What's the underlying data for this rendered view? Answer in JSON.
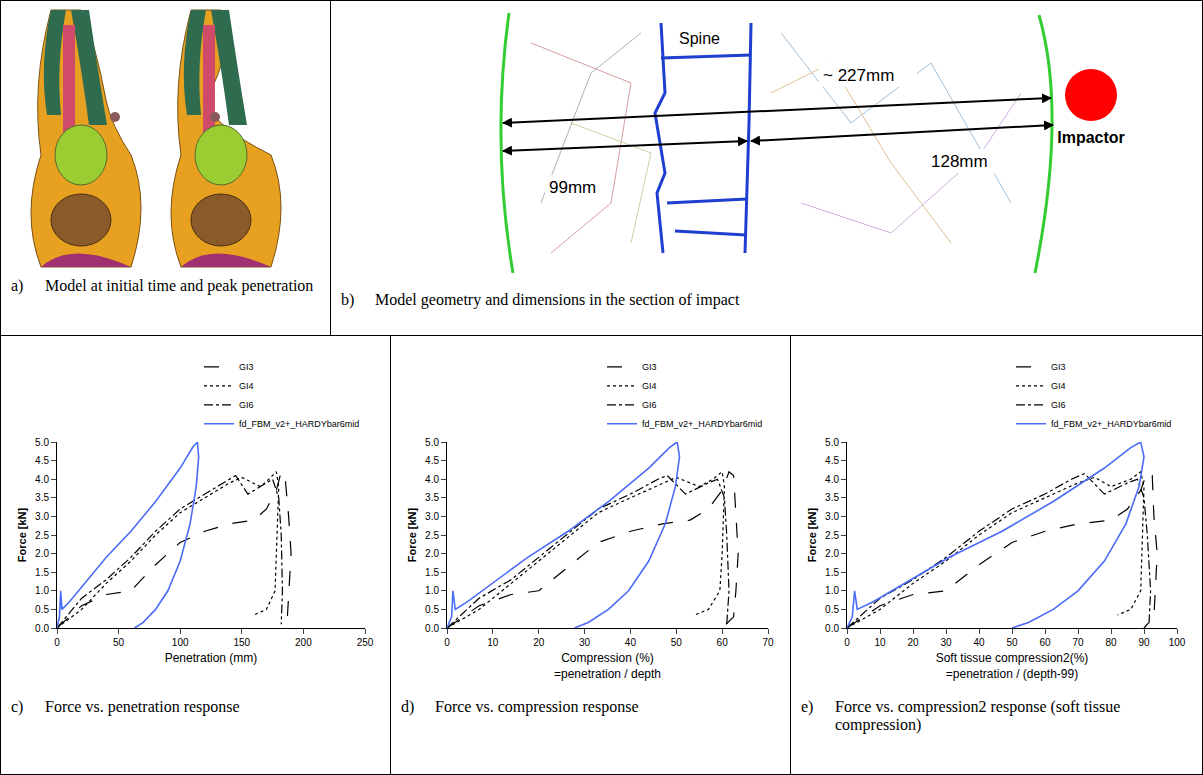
{
  "panels": {
    "a": {
      "label": "a)",
      "caption": "Model at initial time and peak penetration"
    },
    "b": {
      "label": "b)",
      "caption": "Model geometry and dimensions in the section of impact",
      "labels": {
        "spine": "Spine",
        "total": "~ 227mm",
        "back": "99mm",
        "front": "128mm",
        "impactor": "Impactor"
      }
    }
  },
  "chart_data": [
    {
      "type": "line",
      "label": "c)",
      "title": "Force vs. penetration response",
      "x_label": "Penetration (mm)",
      "y_label": "Force [kN]",
      "xlim": [
        0,
        250
      ],
      "xticks": [
        0,
        50,
        100,
        150,
        200,
        250
      ],
      "ylim": [
        0,
        5
      ],
      "yticks": [
        {
          "value": 0,
          "label": "0.0"
        },
        {
          "value": 0.5,
          "label": "0.5"
        },
        {
          "value": 1,
          "label": "1.0"
        },
        {
          "value": 1.5,
          "label": "1.5"
        },
        {
          "value": 2,
          "label": "2.0"
        },
        {
          "value": 2.5,
          "label": "2.5"
        },
        {
          "value": 3,
          "label": "3.0"
        },
        {
          "value": 3.5,
          "label": "3.5"
        },
        {
          "value": 4,
          "label": "4.0"
        },
        {
          "value": 4.5,
          "label": "4.5"
        },
        {
          "value": 5,
          "label": "5.0"
        }
      ],
      "grid": false,
      "legend": "top right",
      "series": [
        {
          "name": "GI3",
          "color": "#000000",
          "line_style": "longdash",
          "x": [
            0,
            20,
            40,
            60,
            80,
            100,
            120,
            140,
            160,
            170,
            178,
            182,
            185,
            188,
            190,
            188,
            187,
            180
          ],
          "values": [
            0,
            0.6,
            0.9,
            1.0,
            1.7,
            2.3,
            2.6,
            2.8,
            2.9,
            3.2,
            3.7,
            4.2,
            4.1,
            3.0,
            2.0,
            1.0,
            0.3,
            0
          ]
        },
        {
          "name": "GI4",
          "color": "#000000",
          "line_style": "dotted",
          "x": [
            0,
            20,
            40,
            60,
            80,
            100,
            120,
            140,
            150,
            165,
            172,
            178,
            180,
            178,
            177,
            170,
            160
          ],
          "values": [
            0,
            0.5,
            1.2,
            1.8,
            2.5,
            3.1,
            3.5,
            3.9,
            4.05,
            3.8,
            4.0,
            4.2,
            3.8,
            2.0,
            1.0,
            0.5,
            0.35
          ]
        },
        {
          "name": "GI6",
          "color": "#000000",
          "line_style": "dashdot",
          "x": [
            0,
            20,
            40,
            60,
            80,
            100,
            120,
            140,
            145,
            155,
            170,
            175,
            180,
            182,
            183,
            182
          ],
          "values": [
            0,
            0.8,
            1.3,
            1.9,
            2.6,
            3.2,
            3.6,
            4.0,
            4.1,
            3.6,
            3.9,
            4.0,
            3.5,
            2.5,
            1.0,
            0.1
          ]
        },
        {
          "name": "fd_FBM_v2+_HARDYbar6mid",
          "color": "#4a6cf7",
          "line_style": "solid",
          "x": [
            0,
            2,
            3,
            4,
            10,
            20,
            40,
            60,
            80,
            100,
            110,
            114,
            115,
            113,
            108,
            100,
            90,
            80,
            70,
            63
          ],
          "values": [
            0,
            0.3,
            1.0,
            0.5,
            0.7,
            1.1,
            1.9,
            2.6,
            3.4,
            4.3,
            4.85,
            5.0,
            4.6,
            3.8,
            2.8,
            1.8,
            1.0,
            0.5,
            0.15,
            0
          ]
        }
      ]
    },
    {
      "type": "line",
      "label": "d)",
      "title": "Force vs. compression response",
      "x_label": "Compression (%)\n=penetration / depth",
      "y_label": "Force [kN]",
      "xlim": [
        0,
        70
      ],
      "xticks": [
        0,
        10,
        20,
        30,
        40,
        50,
        60,
        70
      ],
      "ylim": [
        0,
        5
      ],
      "yticks": [
        {
          "value": 0,
          "label": "0.0"
        },
        {
          "value": 0.5,
          "label": "0.5"
        },
        {
          "value": 1,
          "label": "1.0"
        },
        {
          "value": 1.5,
          "label": "1.5"
        },
        {
          "value": 2,
          "label": "2.0"
        },
        {
          "value": 2.5,
          "label": "2.5"
        },
        {
          "value": 3,
          "label": "3.0"
        },
        {
          "value": 3.5,
          "label": "3.5"
        },
        {
          "value": 4,
          "label": "4.0"
        },
        {
          "value": 4.5,
          "label": "4.5"
        },
        {
          "value": 5,
          "label": "5.0"
        }
      ],
      "grid": false,
      "legend": "top right",
      "series": [
        {
          "name": "GI3",
          "color": "#000000",
          "line_style": "longdash",
          "x": [
            0,
            7,
            14,
            20,
            27,
            33,
            40,
            47,
            53,
            57,
            60,
            61.5,
            62.5,
            63,
            63.5,
            63,
            62.5,
            60
          ],
          "values": [
            0,
            0.6,
            0.9,
            1.0,
            1.7,
            2.3,
            2.6,
            2.8,
            2.9,
            3.2,
            3.7,
            4.2,
            4.1,
            3.0,
            2.0,
            1.0,
            0.3,
            0
          ]
        },
        {
          "name": "GI4",
          "color": "#000000",
          "line_style": "dotted",
          "x": [
            0,
            7,
            14,
            20,
            27,
            33,
            40,
            47,
            50,
            55,
            58,
            60,
            60.5,
            60,
            59.5,
            57,
            54
          ],
          "values": [
            0,
            0.5,
            1.2,
            1.8,
            2.5,
            3.1,
            3.5,
            3.9,
            4.05,
            3.8,
            4.0,
            4.2,
            3.8,
            2.0,
            1.0,
            0.5,
            0.35
          ]
        },
        {
          "name": "GI6",
          "color": "#000000",
          "line_style": "dashdot",
          "x": [
            0,
            7,
            14,
            20,
            27,
            33,
            40,
            46,
            48,
            52,
            57,
            59,
            60.5,
            61,
            61.5,
            61
          ],
          "values": [
            0,
            0.8,
            1.3,
            1.9,
            2.6,
            3.2,
            3.6,
            4.0,
            4.1,
            3.6,
            3.9,
            4.0,
            3.5,
            2.5,
            1.0,
            0.1
          ]
        },
        {
          "name": "fd_FBM_v2+_HARDYbar6mid",
          "color": "#4a6cf7",
          "line_style": "solid",
          "x": [
            0,
            1,
            1.3,
            1.8,
            4.4,
            8.8,
            17.6,
            26.4,
            35.2,
            44,
            48.5,
            50.2,
            50.7,
            49.8,
            47.6,
            44,
            39.6,
            35.2,
            30.8,
            27.8
          ],
          "values": [
            0,
            0.3,
            1.0,
            0.5,
            0.7,
            1.1,
            1.9,
            2.6,
            3.4,
            4.3,
            4.85,
            5.0,
            4.6,
            3.8,
            2.8,
            1.8,
            1.0,
            0.5,
            0.15,
            0
          ]
        }
      ]
    },
    {
      "type": "line",
      "label": "e)",
      "title": "Force vs. compression2 response (soft tissue compression)",
      "x_label": "Soft tissue compression2(%)\n=penetration / (depth-99)",
      "y_label": "Force [kN]",
      "xlim": [
        0,
        100
      ],
      "xticks": [
        0,
        10,
        20,
        30,
        40,
        50,
        60,
        70,
        80,
        90,
        100
      ],
      "ylim": [
        0,
        5
      ],
      "yticks": [
        {
          "value": 0,
          "label": "0.0"
        },
        {
          "value": 0.5,
          "label": "0.5"
        },
        {
          "value": 1,
          "label": "1.0"
        },
        {
          "value": 1.5,
          "label": "1.5"
        },
        {
          "value": 2,
          "label": "2.0"
        },
        {
          "value": 2.5,
          "label": "2.5"
        },
        {
          "value": 3,
          "label": "3.0"
        },
        {
          "value": 3.5,
          "label": "3.5"
        },
        {
          "value": 4,
          "label": "4.0"
        },
        {
          "value": 4.5,
          "label": "4.5"
        },
        {
          "value": 5,
          "label": "5.0"
        }
      ],
      "grid": false,
      "legend": "top right",
      "series": [
        {
          "name": "GI3",
          "color": "#000000",
          "line_style": "longdash",
          "x": [
            0,
            10,
            20,
            30,
            40,
            50,
            60,
            70,
            80,
            85,
            89,
            91,
            92.5,
            93,
            94,
            93.5,
            93,
            90
          ],
          "values": [
            0,
            0.6,
            0.9,
            1.0,
            1.7,
            2.3,
            2.6,
            2.8,
            2.9,
            3.2,
            3.7,
            4.2,
            4.1,
            3.0,
            2.0,
            1.0,
            0.3,
            0
          ]
        },
        {
          "name": "GI4",
          "color": "#000000",
          "line_style": "dotted",
          "x": [
            0,
            10,
            20,
            30,
            40,
            50,
            60,
            70,
            75,
            80,
            86,
            89,
            90,
            89.5,
            89,
            86,
            82
          ],
          "values": [
            0,
            0.5,
            1.2,
            1.8,
            2.5,
            3.1,
            3.5,
            3.9,
            4.05,
            3.8,
            4.0,
            4.2,
            3.8,
            2.0,
            1.0,
            0.5,
            0.35
          ]
        },
        {
          "name": "GI6",
          "color": "#000000",
          "line_style": "dashdot",
          "x": [
            0,
            10,
            20,
            30,
            40,
            50,
            60,
            68,
            72,
            78,
            85,
            88,
            90,
            91,
            92,
            91.5
          ],
          "values": [
            0,
            0.8,
            1.3,
            1.9,
            2.6,
            3.2,
            3.6,
            4.0,
            4.15,
            3.6,
            3.9,
            4.0,
            3.5,
            2.5,
            1.0,
            0.1
          ]
        },
        {
          "name": "fd_FBM_v2+_HARDYbar6mid",
          "color": "#4a6cf7",
          "line_style": "solid",
          "x": [
            0,
            1.6,
            2.3,
            3.1,
            7.8,
            15.6,
            31,
            47,
            62.5,
            78,
            86,
            89,
            90,
            88.5,
            84.5,
            78,
            70,
            62.5,
            55,
            50
          ],
          "values": [
            0,
            0.3,
            1.0,
            0.5,
            0.7,
            1.1,
            1.9,
            2.6,
            3.4,
            4.3,
            4.85,
            5.0,
            4.6,
            3.8,
            2.8,
            1.8,
            1.0,
            0.5,
            0.15,
            0
          ]
        }
      ]
    }
  ]
}
